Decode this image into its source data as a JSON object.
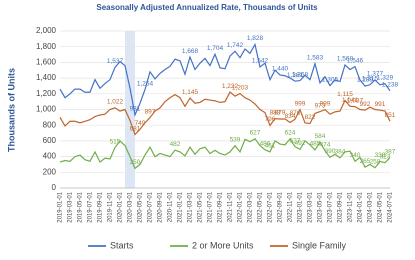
{
  "chart_data": {
    "type": "line",
    "title": "Seasonally Adjusted Annualized Rate, Thousands of Units",
    "y_label": "Thousands of Units",
    "categories": [
      "2019-01-01",
      null,
      "2019-03-01",
      null,
      "2019-05-01",
      null,
      "2019-07-01",
      null,
      "2019-09-01",
      null,
      "2019-11-01",
      null,
      "2020-01-01",
      null,
      "2020-03-01",
      null,
      "2020-05-01",
      null,
      "2020-07-01",
      null,
      "2020-09-01",
      null,
      "2020-11-01",
      null,
      "2021-01-01",
      null,
      "2021-03-01",
      null,
      "2021-05-01",
      null,
      "2021-07-01",
      null,
      "2021-09-01",
      null,
      "2021-11-01",
      null,
      "2022-01-01",
      null,
      "2022-03-01",
      null,
      "2022-05-01",
      null,
      "2022-07-01",
      null,
      "2022-09-01",
      null,
      "2022-11-01",
      null,
      "2023-01-01",
      null,
      "2023-03-01",
      null,
      "2023-05-01",
      null,
      "2023-07-01",
      null,
      "2023-09-01",
      null,
      "2023-11-01",
      null,
      "2024-01-01",
      null,
      "2024-03-01",
      null,
      "2024-05-01",
      null,
      "2024-07-01"
    ],
    "shaded": [
      13,
      15
    ],
    "shade_color": "#dce6f5",
    "series": [
      {
        "name": "Starts",
        "color": "#4472c4",
        "values": [
          1260,
          1150,
          1200,
          1260,
          1260,
          1220,
          1220,
          1380,
          1270,
          1330,
          1380,
          1537,
          1610,
          1560,
          1270,
          931,
          1080,
          1254,
          1480,
          1390,
          1460,
          1510,
          1550,
          1640,
          1620,
          1450,
          1668,
          1510,
          1590,
          1650,
          1560,
          1704,
          1530,
          1520,
          1680,
          1742,
          1660,
          1770,
          1716,
          1828,
          1542,
          1590,
          1380,
          1500,
          1440,
          1430,
          1401,
          1361,
          1368,
          1436,
          1380,
          1583,
          1340,
          1418,
          1305,
          1376,
          1356,
          1568,
          1510,
          1546,
          1375,
          1299,
          1315,
          1377,
          1315,
          1329,
          1238
        ],
        "value_labels": [
          null,
          null,
          null,
          null,
          null,
          null,
          null,
          null,
          null,
          null,
          null,
          "1,537",
          null,
          null,
          null,
          "931",
          null,
          "1,254",
          null,
          null,
          null,
          null,
          null,
          null,
          null,
          null,
          "1,668",
          null,
          null,
          null,
          null,
          "1,704",
          null,
          null,
          null,
          "1,742",
          null,
          null,
          null,
          "1,828",
          "1,542",
          null,
          null,
          null,
          "1,440",
          null,
          null,
          "1,361",
          "1,368",
          null,
          null,
          "1,583",
          null,
          null,
          "1,305",
          null,
          null,
          "1,568",
          null,
          "1,546",
          null,
          "1,299",
          "1,315",
          "1,377",
          null,
          "1,329",
          "1,238"
        ]
      },
      {
        "name": "2 or More Units",
        "color": "#70ad47",
        "values": [
          330,
          350,
          340,
          400,
          420,
          360,
          340,
          460,
          330,
          380,
          370,
          515,
          600,
          540,
          400,
          250,
          300,
          420,
          520,
          400,
          440,
          420,
          400,
          482,
          460,
          410,
          520,
          430,
          500,
          520,
          440,
          480,
          440,
          420,
          460,
          539,
          460,
          620,
          590,
          627,
          540,
          486,
          461,
          600,
          560,
          550,
          624,
          527,
          492,
          600,
          550,
          485,
          584,
          474,
          390,
          430,
          384,
          460,
          470,
          340,
          390,
          265,
          300,
          258,
          338,
          323,
          387
        ],
        "value_labels": [
          null,
          null,
          null,
          null,
          null,
          null,
          null,
          null,
          null,
          null,
          null,
          "515",
          null,
          null,
          null,
          "250",
          null,
          null,
          null,
          null,
          null,
          null,
          null,
          "482",
          null,
          null,
          null,
          null,
          null,
          null,
          null,
          null,
          null,
          null,
          null,
          "539",
          null,
          null,
          null,
          "627",
          null,
          "486",
          "461",
          null,
          null,
          null,
          "624",
          "527",
          "492",
          null,
          null,
          "485",
          "584",
          "474",
          "390",
          null,
          "384",
          null,
          null,
          "340",
          null,
          "265",
          null,
          "258",
          "338",
          "323",
          "387"
        ]
      },
      {
        "name": "Single Family",
        "color": "#c0652a",
        "values": [
          900,
          790,
          850,
          850,
          830,
          850,
          870,
          910,
          930,
          940,
          1000,
          1022,
          980,
          1000,
          860,
          681,
          749,
          830,
          897,
          980,
          1020,
          1100,
          1150,
          1190,
          1150,
          1040,
          1145,
          1080,
          1090,
          1130,
          1120,
          1110,
          1090,
          1100,
          1222,
          1170,
          1203,
          1150,
          1120,
          1070,
          1000,
          960,
          796,
          883,
          879,
          880,
          834,
          876,
          999,
          830,
          822,
          950,
          973,
          999,
          940,
          970,
          980,
          1115,
          1041,
          1037,
          1000,
          992,
          1030,
          1000,
          991,
          980,
          851
        ],
        "value_labels": [
          null,
          null,
          null,
          null,
          null,
          null,
          null,
          null,
          null,
          null,
          null,
          "1,022",
          null,
          null,
          null,
          "681",
          "749",
          null,
          "897",
          null,
          null,
          null,
          null,
          null,
          null,
          null,
          "1,145",
          null,
          null,
          null,
          null,
          null,
          null,
          null,
          "1,222",
          null,
          "1,203",
          null,
          null,
          null,
          null,
          null,
          "796",
          "883",
          "879",
          null,
          "834",
          "876",
          "999",
          null,
          "822",
          null,
          "973",
          "999",
          null,
          null,
          null,
          "1,115",
          "1,041",
          "1,037",
          null,
          "992",
          null,
          null,
          "991",
          null,
          "851"
        ]
      }
    ],
    "ylim": [
      0,
      2000
    ],
    "yticks": [
      0,
      200,
      400,
      600,
      800,
      {
        "value": 1000,
        "label": "1,000"
      },
      {
        "value": 1200,
        "label": "1,200"
      },
      {
        "value": 1400,
        "label": "1,400"
      },
      {
        "value": 1600,
        "label": "1,600"
      },
      {
        "value": 1800,
        "label": "1,800"
      },
      {
        "value": 2000,
        "label": "2,000"
      }
    ],
    "grid": true,
    "legend": "bottom"
  }
}
